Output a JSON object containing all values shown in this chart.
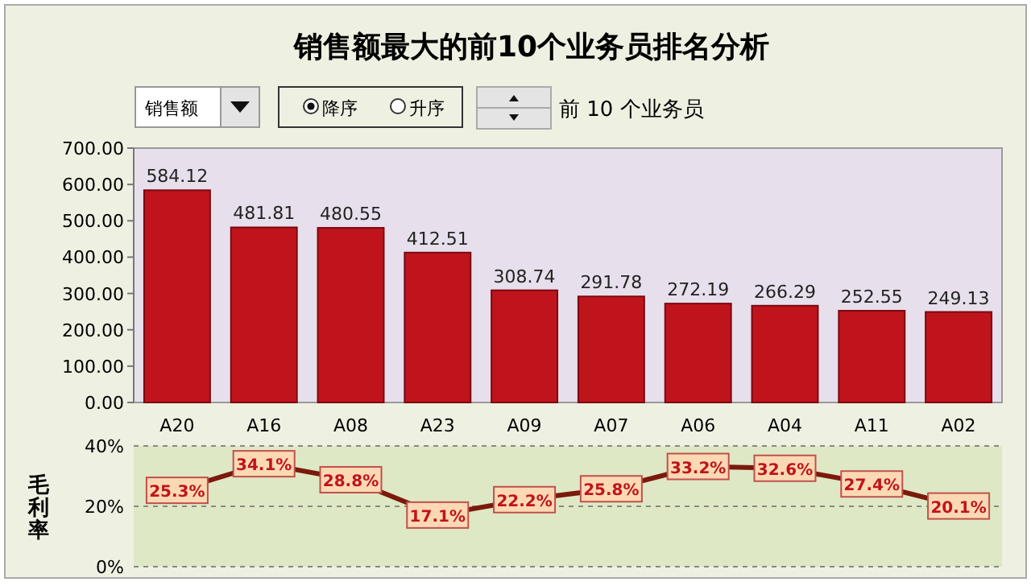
{
  "chart_data": [
    {
      "type": "bar",
      "title": "销售额最大的前10个业务员排名分析",
      "annotations": [
        "销售额",
        "降序",
        "升序",
        "前 10 个业务员"
      ],
      "categories": [
        "A20",
        "A16",
        "A08",
        "A23",
        "A09",
        "A07",
        "A06",
        "A04",
        "A11",
        "A02"
      ],
      "values": [
        584.12,
        481.81,
        480.55,
        412.51,
        308.74,
        291.78,
        272.19,
        266.29,
        252.55,
        249.13
      ],
      "color": "#c0141c",
      "ylim": [
        0,
        700
      ],
      "yticks": [
        {
          "value": 0,
          "label": "0.00"
        },
        {
          "value": 100,
          "label": "100.00"
        },
        {
          "value": 200,
          "label": "200.00"
        },
        {
          "value": 300,
          "label": "300.00"
        },
        {
          "value": 400,
          "label": "400.00"
        },
        {
          "value": 500,
          "label": "500.00"
        },
        {
          "value": 600,
          "label": "600.00"
        },
        {
          "value": 700,
          "label": "700.00"
        }
      ],
      "data_labels": true,
      "grid": false
    },
    {
      "type": "line",
      "ylabel": "毛利率",
      "values": [
        25.3,
        34.1,
        28.8,
        17.1,
        22.2,
        25.8,
        33.2,
        32.6,
        27.4,
        20.1
      ],
      "color": "#7a1a0c",
      "value_labels": [
        "25.3%",
        "34.1%",
        "28.8%",
        "17.1%",
        "22.2%",
        "25.8%",
        "33.2%",
        "32.6%",
        "27.4%",
        "20.1%"
      ],
      "ylim": [
        0,
        40
      ],
      "yticks": [
        {
          "value": 0,
          "label": "0%"
        },
        {
          "value": 20,
          "label": "20%"
        },
        {
          "value": 40,
          "label": "40%"
        }
      ],
      "grid": "y",
      "line_style": "solid",
      "marker": "square"
    }
  ]
}
